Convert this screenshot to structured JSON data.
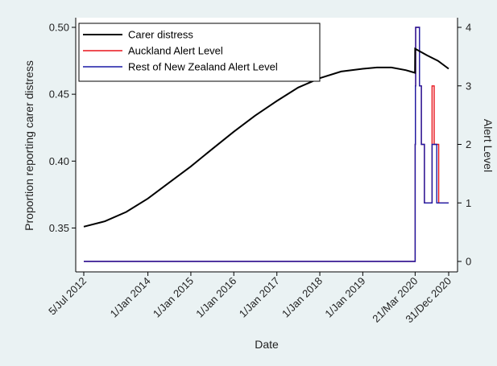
{
  "chart_data": {
    "type": "line",
    "xlabel": "Date",
    "ylabel": "Proportion reporting carer distress",
    "y2label": "Alert Level",
    "x_ticks": [
      "5/Jul 2012",
      "1/Jan 2014",
      "1/Jan 2015",
      "1/Jan 2016",
      "1/Jan 2017",
      "1/Jan 2018",
      "1/Jan 2019",
      "21/Mar 2020",
      "31/Dec 2020"
    ],
    "y_ticks": [
      "0.35",
      "0.40",
      "0.45",
      "0.50"
    ],
    "y2_ticks": [
      "0",
      "1",
      "2",
      "3",
      "4"
    ],
    "ylim": [
      0.325,
      0.5
    ],
    "y2lim": [
      0,
      4
    ],
    "legend_position": "top-left",
    "series": [
      {
        "name": "Carer distress",
        "axis": "left",
        "color": "#000000",
        "points": [
          [
            "2012-07-05",
            0.351
          ],
          [
            "2013-01-01",
            0.355
          ],
          [
            "2013-07-01",
            0.362
          ],
          [
            "2014-01-01",
            0.372
          ],
          [
            "2014-07-01",
            0.384
          ],
          [
            "2015-01-01",
            0.396
          ],
          [
            "2015-07-01",
            0.409
          ],
          [
            "2016-01-01",
            0.422
          ],
          [
            "2016-07-01",
            0.434
          ],
          [
            "2017-01-01",
            0.445
          ],
          [
            "2017-07-01",
            0.455
          ],
          [
            "2018-01-01",
            0.462
          ],
          [
            "2018-07-01",
            0.467
          ],
          [
            "2019-01-01",
            0.469
          ],
          [
            "2019-05-01",
            0.47
          ],
          [
            "2019-09-01",
            0.47
          ],
          [
            "2020-01-01",
            0.468
          ],
          [
            "2020-03-20",
            0.466
          ],
          [
            "2020-03-21",
            0.484
          ],
          [
            "2020-07-01",
            0.479
          ],
          [
            "2020-10-01",
            0.475
          ],
          [
            "2020-12-31",
            0.469
          ]
        ]
      },
      {
        "name": "Auckland Alert Level",
        "axis": "right",
        "color": "#e8141c",
        "points": [
          [
            "2012-07-05",
            0
          ],
          [
            "2020-03-21",
            0
          ],
          [
            "2020-03-21",
            2
          ],
          [
            "2020-03-23",
            2
          ],
          [
            "2020-03-23",
            3
          ],
          [
            "2020-03-25",
            3
          ],
          [
            "2020-03-25",
            4
          ],
          [
            "2020-04-27",
            4
          ],
          [
            "2020-04-27",
            3
          ],
          [
            "2020-05-13",
            3
          ],
          [
            "2020-05-13",
            2
          ],
          [
            "2020-06-08",
            2
          ],
          [
            "2020-06-08",
            1
          ],
          [
            "2020-08-12",
            1
          ],
          [
            "2020-08-12",
            3
          ],
          [
            "2020-08-30",
            3
          ],
          [
            "2020-08-30",
            2
          ],
          [
            "2020-10-07",
            2
          ],
          [
            "2020-10-07",
            1
          ],
          [
            "2020-12-31",
            1
          ]
        ]
      },
      {
        "name": "Rest of New Zealand Alert Level",
        "axis": "right",
        "color": "#1a1aa6",
        "points": [
          [
            "2012-07-05",
            0
          ],
          [
            "2020-03-21",
            0
          ],
          [
            "2020-03-21",
            2
          ],
          [
            "2020-03-23",
            2
          ],
          [
            "2020-03-23",
            3
          ],
          [
            "2020-03-25",
            3
          ],
          [
            "2020-03-25",
            4
          ],
          [
            "2020-04-27",
            4
          ],
          [
            "2020-04-27",
            3
          ],
          [
            "2020-05-13",
            3
          ],
          [
            "2020-05-13",
            2
          ],
          [
            "2020-06-08",
            2
          ],
          [
            "2020-06-08",
            1
          ],
          [
            "2020-08-12",
            1
          ],
          [
            "2020-08-12",
            2
          ],
          [
            "2020-09-21",
            2
          ],
          [
            "2020-09-21",
            1
          ],
          [
            "2020-12-31",
            1
          ]
        ]
      }
    ]
  }
}
